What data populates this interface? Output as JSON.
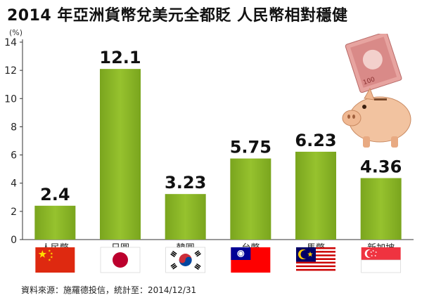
{
  "title": "2014 年亞洲貨幣兌美元全都貶 人民幣相對穩健",
  "unit": "(%)",
  "source": "資料來源：施羅德投信，統計至：2014/12/31",
  "chart_data": {
    "type": "bar",
    "title": "2014 年亞洲貨幣兌美元全都貶 人民幣相對穩健",
    "ylabel": "(%)",
    "xlabel": "",
    "ylim": [
      0,
      14
    ],
    "yticks": [
      0,
      2,
      4,
      6,
      8,
      10,
      12,
      14
    ],
    "categories": [
      "人民幣",
      "日圓",
      "韓圓",
      "台幣",
      "馬幣",
      "新加坡"
    ],
    "values": [
      2.4,
      12.1,
      3.23,
      5.75,
      6.23,
      4.36
    ],
    "value_labels": [
      "2.4",
      "12.1",
      "3.23",
      "5.75",
      "6.23",
      "4.36"
    ],
    "grid": false,
    "bar_color": "#8ab52a",
    "flags": [
      "china-flag",
      "japan-flag",
      "south-korea-flag",
      "taiwan-flag",
      "malaysia-flag",
      "singapore-flag"
    ]
  }
}
